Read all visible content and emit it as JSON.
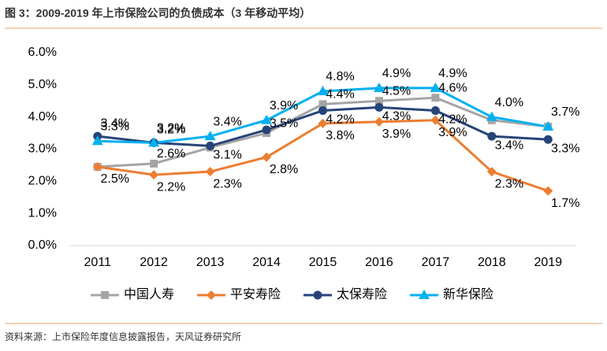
{
  "chart_data": {
    "type": "line",
    "title": "图 3：2009-2019 年上市保险公司的负债成本（3 年移动平均）",
    "source": "资料来源：上市保险年度信息披露报告，天风证券研究所",
    "categories": [
      "2011",
      "2012",
      "2013",
      "2014",
      "2015",
      "2016",
      "2017",
      "2018",
      "2019"
    ],
    "ylim": [
      0,
      6
    ],
    "yticks": [
      {
        "value": 0,
        "label": "0.0%"
      },
      {
        "value": 1,
        "label": "1.0%"
      },
      {
        "value": 2,
        "label": "2.0%"
      },
      {
        "value": 3,
        "label": "3.0%"
      },
      {
        "value": 4,
        "label": "4.0%"
      },
      {
        "value": 5,
        "label": "5.0%"
      },
      {
        "value": 6,
        "label": "6.0%"
      }
    ],
    "legend": "bottom",
    "series": [
      {
        "name": "中国人寿",
        "color": "#a5a5a5",
        "marker": "square",
        "values": [
          2.45,
          2.55,
          3.05,
          3.5,
          4.4,
          4.5,
          4.6,
          3.9,
          3.7
        ],
        "value_labels": [
          null,
          "2.6%",
          null,
          "3.5%",
          "4.4%",
          "4.5%",
          "4.6%",
          null,
          null
        ]
      },
      {
        "name": "平安寿险",
        "color": "#ed7d31",
        "marker": "diamond",
        "values": [
          2.45,
          2.2,
          2.3,
          2.75,
          3.8,
          3.85,
          3.9,
          2.3,
          1.7
        ],
        "value_labels": [
          "2.5%",
          "2.2%",
          "2.3%",
          "2.8%",
          "3.8%",
          "3.9%",
          "3.9%",
          "2.3%",
          "1.7%"
        ]
      },
      {
        "name": "太保寿险",
        "color": "#264478",
        "marker": "circle",
        "values": [
          3.4,
          3.2,
          3.1,
          3.6,
          4.2,
          4.3,
          4.2,
          3.4,
          3.3
        ],
        "value_labels": [
          "3.4%",
          "3.2%",
          "3.1%",
          null,
          "4.2%",
          "4.3%",
          "4.2%",
          "3.4%",
          "3.3%"
        ]
      },
      {
        "name": "新华保险",
        "color": "#00b0f0",
        "marker": "triangle",
        "values": [
          3.25,
          3.2,
          3.4,
          3.9,
          4.8,
          4.9,
          4.9,
          4.0,
          3.7
        ],
        "value_labels": [
          "3.3%",
          "3.2%",
          "3.4%",
          "3.9%",
          "4.8%",
          "4.9%",
          "4.9%",
          "4.0%",
          "3.7%"
        ]
      }
    ]
  }
}
